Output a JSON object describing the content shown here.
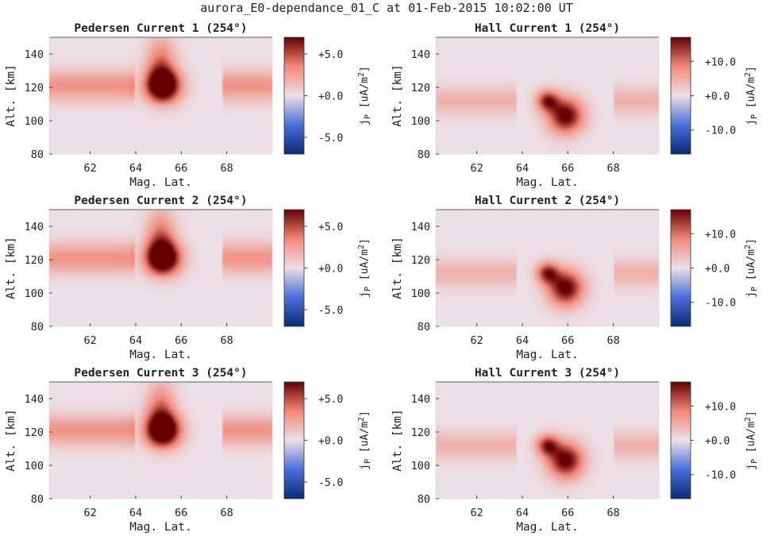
{
  "figure": {
    "title": "aurora_E0-dependance_01_C at 01-Feb-2015 10:02:00 UT",
    "colors": {
      "neg_end": "#0a2a78",
      "neg_mid": "#4a6fd8",
      "zero": "#ece0e6",
      "pos_mid": "#f28878",
      "pos_end": "#650000"
    }
  },
  "chart_data": [
    {
      "type": "heatmap",
      "title": "Pedersen Current 1 (254°)",
      "xlabel": "Mag. Lat.",
      "ylabel": "Alt. [km]",
      "xlim": [
        60.2,
        70
      ],
      "ylim": [
        80,
        150
      ],
      "xticks": [
        "62",
        "64",
        "66",
        "68"
      ],
      "yticks": [
        "80",
        "100",
        "120",
        "140"
      ],
      "colorbar": {
        "label": "j_P [uA/m^2]",
        "range": [
          -7,
          7
        ],
        "ticks": [
          "+5.0",
          "+0.0",
          "-5.0"
        ]
      }
    },
    {
      "type": "heatmap",
      "title": "Hall Current 1 (254°)",
      "xlabel": "Mag. Lat.",
      "ylabel": "Alt. [km]",
      "xlim": [
        60.2,
        70
      ],
      "ylim": [
        80,
        150
      ],
      "xticks": [
        "62",
        "64",
        "66",
        "68"
      ],
      "yticks": [
        "80",
        "100",
        "120",
        "140"
      ],
      "colorbar": {
        "label": "j_P [uA/m^2]",
        "range": [
          -17,
          17
        ],
        "ticks": [
          "+10.0",
          "+0.0",
          "-10.0"
        ]
      }
    },
    {
      "type": "heatmap",
      "title": "Pedersen Current 2 (254°)",
      "xlabel": "Mag. Lat.",
      "ylabel": "Alt. [km]",
      "xlim": [
        60.2,
        70
      ],
      "ylim": [
        80,
        150
      ],
      "xticks": [
        "62",
        "64",
        "66",
        "68"
      ],
      "yticks": [
        "80",
        "100",
        "120",
        "140"
      ],
      "colorbar": {
        "label": "j_P [uA/m^2]",
        "range": [
          -7,
          7
        ],
        "ticks": [
          "+5.0",
          "+0.0",
          "-5.0"
        ]
      }
    },
    {
      "type": "heatmap",
      "title": "Hall Current 2 (254°)",
      "xlabel": "Mag. Lat.",
      "ylabel": "Alt. [km]",
      "xlim": [
        60.2,
        70
      ],
      "ylim": [
        80,
        150
      ],
      "xticks": [
        "62",
        "64",
        "66",
        "68"
      ],
      "yticks": [
        "80",
        "100",
        "120",
        "140"
      ],
      "colorbar": {
        "label": "j_P [uA/m^2]",
        "range": [
          -17,
          17
        ],
        "ticks": [
          "+10.0",
          "+0.0",
          "-10.0"
        ]
      }
    },
    {
      "type": "heatmap",
      "title": "Pedersen Current 3 (254°)",
      "xlabel": "Mag. Lat.",
      "ylabel": "Alt. [km]",
      "xlim": [
        60.2,
        70
      ],
      "ylim": [
        80,
        150
      ],
      "xticks": [
        "62",
        "64",
        "66",
        "68"
      ],
      "yticks": [
        "80",
        "100",
        "120",
        "140"
      ],
      "colorbar": {
        "label": "j_P [uA/m^2]",
        "range": [
          -7,
          7
        ],
        "ticks": [
          "+5.0",
          "+0.0",
          "-5.0"
        ]
      }
    },
    {
      "type": "heatmap",
      "title": "Hall Current 3 (254°)",
      "xlabel": "Mag. Lat.",
      "ylabel": "Alt. [km]",
      "xlim": [
        60.2,
        70
      ],
      "ylim": [
        80,
        150
      ],
      "xticks": [
        "62",
        "64",
        "66",
        "68"
      ],
      "yticks": [
        "80",
        "100",
        "120",
        "140"
      ],
      "colorbar": {
        "label": "j_P [uA/m^2]",
        "range": [
          -17,
          17
        ],
        "ticks": [
          "+10.0",
          "+0.0",
          "-10.0"
        ]
      }
    }
  ]
}
